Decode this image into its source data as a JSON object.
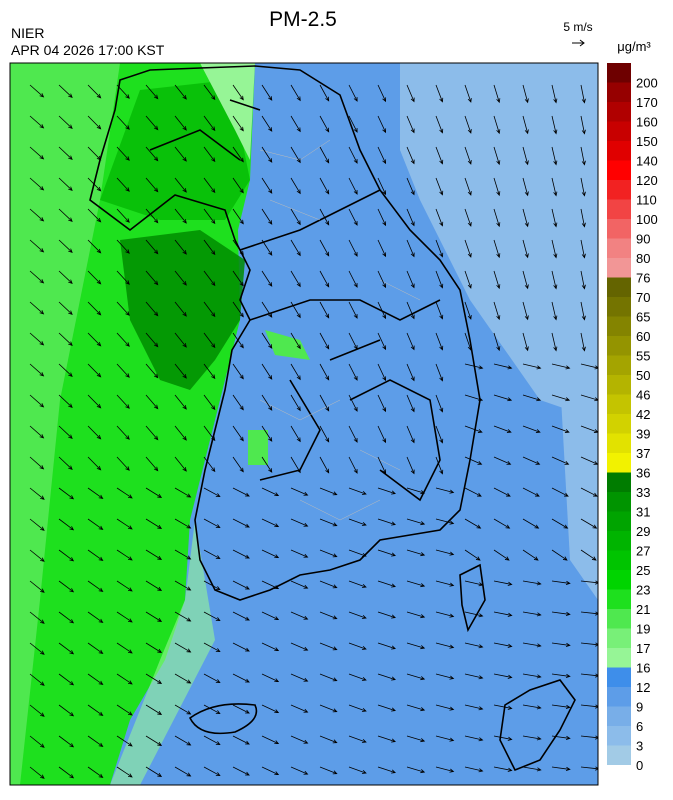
{
  "header": {
    "title": "PM-2.5",
    "agency": "NIER",
    "timestamp": "APR 04 2026 17:00 KST",
    "wind_scale": "5 m/s",
    "unit": "μg/m³"
  },
  "legend": {
    "levels": [
      0,
      3,
      6,
      9,
      12,
      16,
      17,
      19,
      21,
      23,
      25,
      27,
      29,
      31,
      33,
      36,
      37,
      39,
      42,
      46,
      50,
      55,
      60,
      65,
      70,
      76,
      80,
      90,
      100,
      110,
      120,
      140,
      150,
      160,
      170,
      200
    ],
    "colors": [
      "#a2cbe6",
      "#8cbcea",
      "#78aee8",
      "#5d9de8",
      "#3e8eea",
      "#96f596",
      "#78f078",
      "#4fe84f",
      "#1ee01e",
      "#00d400",
      "#00c400",
      "#00b400",
      "#00a400",
      "#009400",
      "#007c00",
      "#f2f200",
      "#e2e200",
      "#d2d200",
      "#c4c400",
      "#b4b400",
      "#a4a400",
      "#949400",
      "#848400",
      "#747400",
      "#646400",
      "#f29696",
      "#f28282",
      "#f26464",
      "#f24444",
      "#f22222",
      "#ff0000",
      "#e00000",
      "#c80000",
      "#b00000",
      "#960000",
      "#6e0000"
    ]
  }
}
